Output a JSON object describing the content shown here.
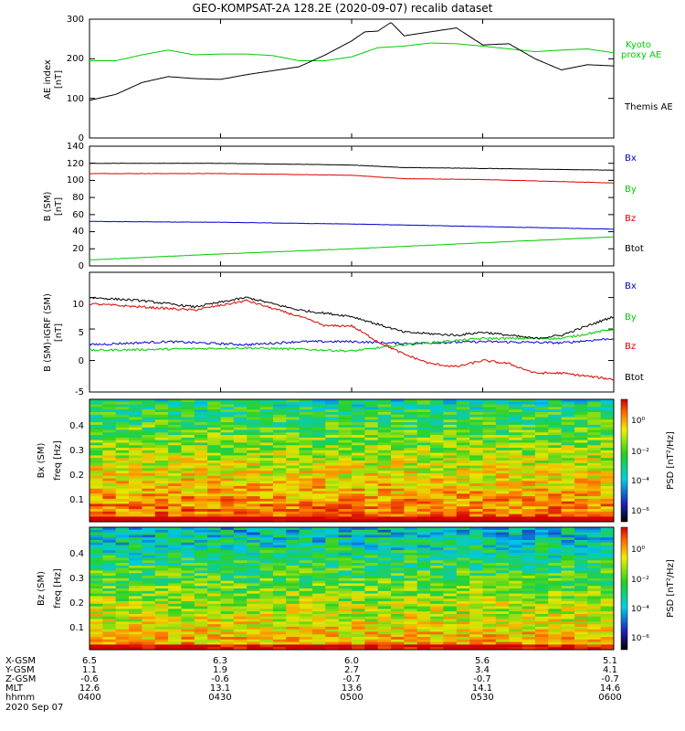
{
  "title": "GEO-KOMPSAT-2A 128.2E (2020-09-07) recalib dataset",
  "chart_data": [
    {
      "type": "line",
      "panel": "ae",
      "ylabel": "AE index",
      "yunit": "[nT]",
      "ylim": [
        0,
        300
      ],
      "yticks": [
        "0",
        "100",
        "200",
        "300"
      ],
      "xlim_hours": [
        4.0,
        6.0
      ],
      "series": [
        {
          "name": "Kyoto proxy AE",
          "legend_lines": [
            "Kyoto",
            "proxy AE"
          ],
          "color": "#00cc00",
          "x": [
            4.0,
            4.1,
            4.2,
            4.3,
            4.4,
            4.5,
            4.6,
            4.7,
            4.8,
            4.9,
            5.0,
            5.1,
            5.2,
            5.3,
            5.4,
            5.5,
            5.6,
            5.7,
            5.8,
            5.9,
            6.0
          ],
          "y": [
            195,
            195,
            210,
            222,
            210,
            212,
            212,
            208,
            195,
            195,
            205,
            228,
            232,
            240,
            238,
            232,
            225,
            218,
            222,
            225,
            215
          ]
        },
        {
          "name": "Themis AE",
          "legend_lines": [
            "Themis AE"
          ],
          "color": "#000000",
          "x": [
            4.0,
            4.1,
            4.2,
            4.3,
            4.4,
            4.5,
            4.6,
            4.7,
            4.8,
            4.9,
            5.0,
            5.05,
            5.1,
            5.15,
            5.2,
            5.3,
            5.4,
            5.5,
            5.6,
            5.7,
            5.8,
            5.9,
            6.0
          ],
          "y": [
            95,
            110,
            140,
            155,
            150,
            148,
            160,
            170,
            180,
            210,
            245,
            268,
            270,
            292,
            258,
            268,
            278,
            235,
            238,
            200,
            172,
            185,
            182
          ]
        }
      ]
    },
    {
      "type": "line",
      "panel": "b_sm",
      "ylabel": "B (SM)",
      "yunit": "[nT]",
      "ylim": [
        0,
        140
      ],
      "yticks": [
        "0",
        "20",
        "40",
        "60",
        "80",
        "100",
        "120",
        "140"
      ],
      "xlim_hours": [
        4.0,
        6.0
      ],
      "series": [
        {
          "name": "Bx",
          "color": "#0000cc",
          "x": [
            4.0,
            4.5,
            5.0,
            5.5,
            6.0
          ],
          "y": [
            52,
            51,
            49,
            46,
            43
          ]
        },
        {
          "name": "By",
          "color": "#00cc00",
          "x": [
            4.0,
            4.5,
            5.0,
            5.5,
            6.0
          ],
          "y": [
            7,
            14,
            20,
            27,
            34
          ]
        },
        {
          "name": "Bz",
          "color": "#dd0000",
          "x": [
            4.0,
            4.5,
            5.0,
            5.2,
            5.5,
            6.0
          ],
          "y": [
            108,
            108,
            106,
            102,
            101,
            97
          ]
        },
        {
          "name": "Btot",
          "color": "#000000",
          "x": [
            4.0,
            4.5,
            5.0,
            5.2,
            5.5,
            6.0
          ],
          "y": [
            120,
            120,
            118,
            115,
            114,
            112
          ]
        }
      ]
    },
    {
      "type": "line",
      "panel": "b_minus_igrf",
      "ylabel": "B (SM)-IGRF (SM)",
      "yunit": "[nT]",
      "ylim": [
        -5,
        14
      ],
      "yticks": [
        "-5",
        "0",
        "5",
        "10"
      ],
      "xlim_hours": [
        4.0,
        6.0
      ],
      "series": [
        {
          "name": "Bx",
          "color": "#0000cc",
          "x": [
            4.0,
            4.3,
            4.6,
            4.8,
            5.0,
            5.2,
            5.5,
            5.8,
            6.0
          ],
          "y": [
            2.5,
            3.0,
            2.5,
            3.0,
            3.0,
            2.7,
            3.0,
            2.8,
            3.5
          ]
        },
        {
          "name": "By",
          "color": "#00cc00",
          "x": [
            4.0,
            4.3,
            4.6,
            4.8,
            5.0,
            5.2,
            5.5,
            5.8,
            6.0
          ],
          "y": [
            1.6,
            1.8,
            2.0,
            1.8,
            1.5,
            2.5,
            3.5,
            3.5,
            5.0
          ]
        },
        {
          "name": "Bz",
          "color": "#dd0000",
          "x": [
            4.0,
            4.2,
            4.4,
            4.6,
            4.8,
            4.9,
            5.0,
            5.1,
            5.2,
            5.3,
            5.4,
            5.5,
            5.6,
            5.7,
            5.8,
            6.0
          ],
          "y": [
            9.0,
            8.5,
            8.0,
            9.5,
            7.0,
            5.5,
            5.5,
            3.0,
            1.0,
            -0.5,
            -1.0,
            0.0,
            -0.5,
            -2.0,
            -2.0,
            -3.0
          ]
        },
        {
          "name": "Btot",
          "color": "#000000",
          "x": [
            4.0,
            4.2,
            4.4,
            4.6,
            4.8,
            5.0,
            5.2,
            5.4,
            5.5,
            5.6,
            5.7,
            5.8,
            6.0
          ],
          "y": [
            10.0,
            9.5,
            8.5,
            10.0,
            8.0,
            7.0,
            4.5,
            4.0,
            4.5,
            4.0,
            3.5,
            4.0,
            7.0
          ]
        }
      ]
    },
    {
      "type": "heatmap",
      "panel": "bx_spectrogram",
      "ylabel": "Bx (SM)",
      "yunit": "freq [Hz]",
      "ylim": [
        0,
        0.5
      ],
      "yticks": [
        "0.1",
        "0.2",
        "0.3",
        "0.4"
      ],
      "xlim_hours": [
        4.0,
        6.0
      ],
      "colorbar_label": "PSD [nT²/Hz]",
      "colorbar_ticks": [
        "10⁰",
        "10⁻²",
        "10⁻⁴",
        "10⁻⁶"
      ]
    },
    {
      "type": "heatmap",
      "panel": "bz_spectrogram",
      "ylabel": "Bz (SM)",
      "yunit": "freq [Hz]",
      "ylim": [
        0,
        0.5
      ],
      "yticks": [
        "0.1",
        "0.2",
        "0.3",
        "0.4"
      ],
      "xlim_hours": [
        4.0,
        6.0
      ],
      "colorbar_label": "PSD [nT²/Hz]",
      "colorbar_ticks": [
        "10⁰",
        "10⁻²",
        "10⁻⁴",
        "10⁻⁶"
      ]
    }
  ],
  "ephemeris": {
    "labels": [
      "X-GSM",
      "Y-GSM",
      "Z-GSM",
      "MLT",
      "hhmm"
    ],
    "columns": [
      {
        "values": [
          "6.5",
          "1.1",
          "-0.6",
          "12.6",
          "0400"
        ]
      },
      {
        "values": [
          "6.3",
          "1.9",
          "-0.6",
          "13.1",
          "0430"
        ]
      },
      {
        "values": [
          "6.0",
          "2.7",
          "-0.7",
          "13.6",
          "0500"
        ]
      },
      {
        "values": [
          "5.6",
          "3.4",
          "-0.7",
          "14.1",
          "0530"
        ]
      },
      {
        "values": [
          "5.1",
          "4.1",
          "-0.7",
          "14.6",
          "0600"
        ]
      }
    ],
    "date": "2020 Sep 07"
  }
}
